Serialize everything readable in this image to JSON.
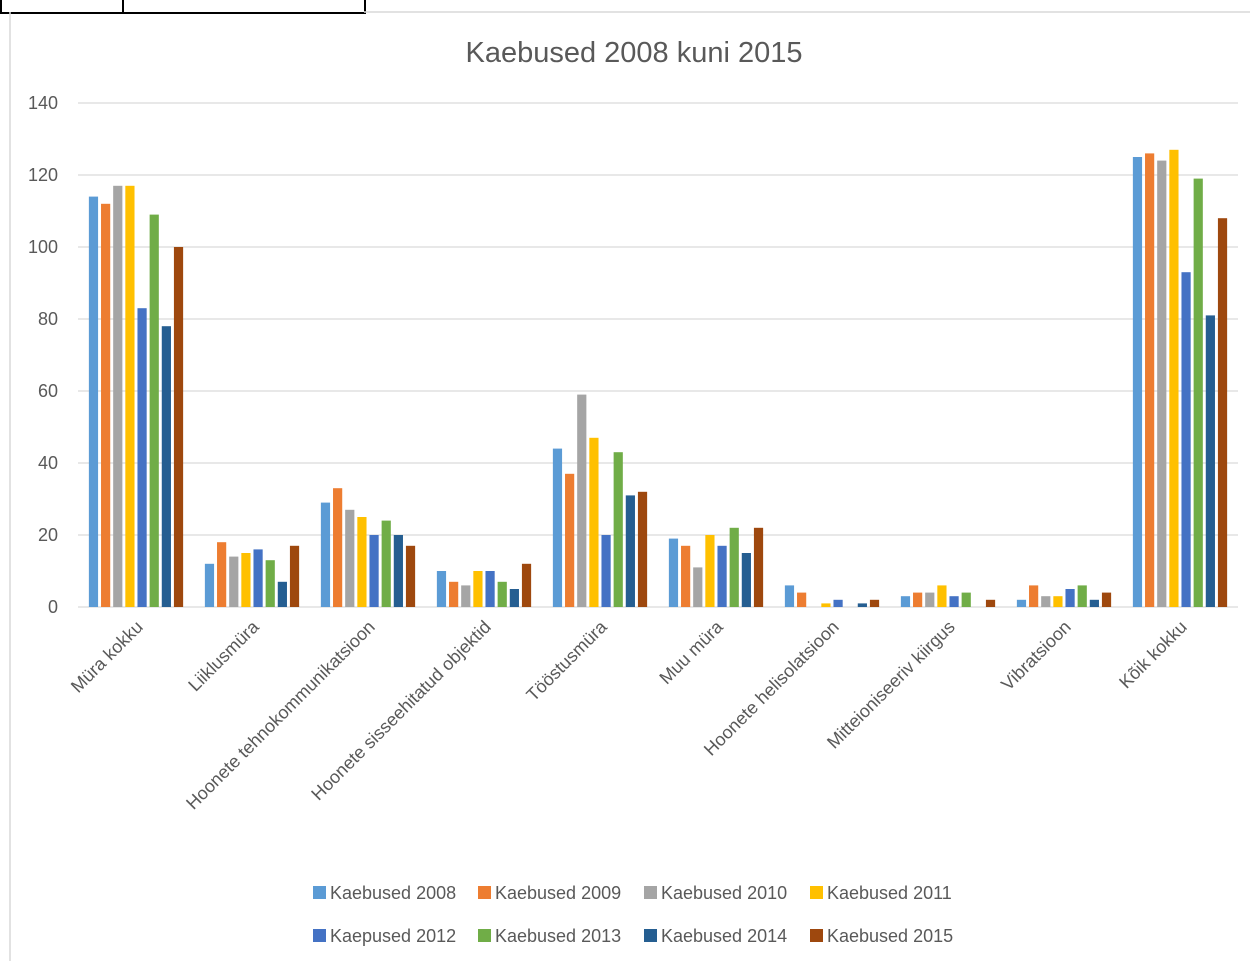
{
  "chart_data": {
    "type": "bar",
    "title": "Kaebused 2008 kuni 2015",
    "xlabel": "",
    "ylabel": "",
    "ylim": [
      0,
      140
    ],
    "yticks": [
      0,
      20,
      40,
      60,
      80,
      100,
      120,
      140
    ],
    "grid": true,
    "legend_position": "bottom",
    "categories": [
      "Müra kokku",
      "Liiklusmüra",
      "Hoonete tehnokommunikatsioon",
      "Hoonete sisseehitatud objektid",
      "Tööstusmüra",
      "Muu müra",
      "Hoonete helisolatsioon",
      "Mitteioniseeriv kiirgus",
      "Vibratsioon",
      "Kõik kokku"
    ],
    "series": [
      {
        "name": "Kaebused 2008",
        "color": "#5B9BD5",
        "values": [
          114,
          12,
          29,
          10,
          44,
          19,
          6,
          3,
          2,
          125
        ]
      },
      {
        "name": "Kaebused 2009",
        "color": "#ED7D31",
        "values": [
          112,
          18,
          33,
          7,
          37,
          17,
          4,
          4,
          6,
          126
        ]
      },
      {
        "name": "Kaebused 2010",
        "color": "#A5A5A5",
        "values": [
          117,
          14,
          27,
          6,
          59,
          11,
          0,
          4,
          3,
          124
        ]
      },
      {
        "name": "Kaebused 2011",
        "color": "#FFC000",
        "values": [
          117,
          15,
          25,
          10,
          47,
          20,
          1,
          6,
          3,
          127
        ]
      },
      {
        "name": "Kaepused 2012",
        "color": "#4472C4",
        "values": [
          83,
          16,
          20,
          10,
          20,
          17,
          2,
          3,
          5,
          93
        ]
      },
      {
        "name": "Kaebused 2013",
        "color": "#70AD47",
        "values": [
          109,
          13,
          24,
          7,
          43,
          22,
          0,
          4,
          6,
          119
        ]
      },
      {
        "name": "Kaebused 2014",
        "color": "#255E91",
        "values": [
          78,
          7,
          20,
          5,
          31,
          15,
          1,
          0,
          2,
          81
        ]
      },
      {
        "name": "Kaebused 2015",
        "color": "#9E480E",
        "values": [
          100,
          17,
          17,
          12,
          32,
          22,
          2,
          2,
          4,
          108
        ]
      }
    ]
  },
  "colors": {
    "gridline": "#D9D9D9",
    "text": "#595959",
    "frame": "#D9D9D9"
  }
}
